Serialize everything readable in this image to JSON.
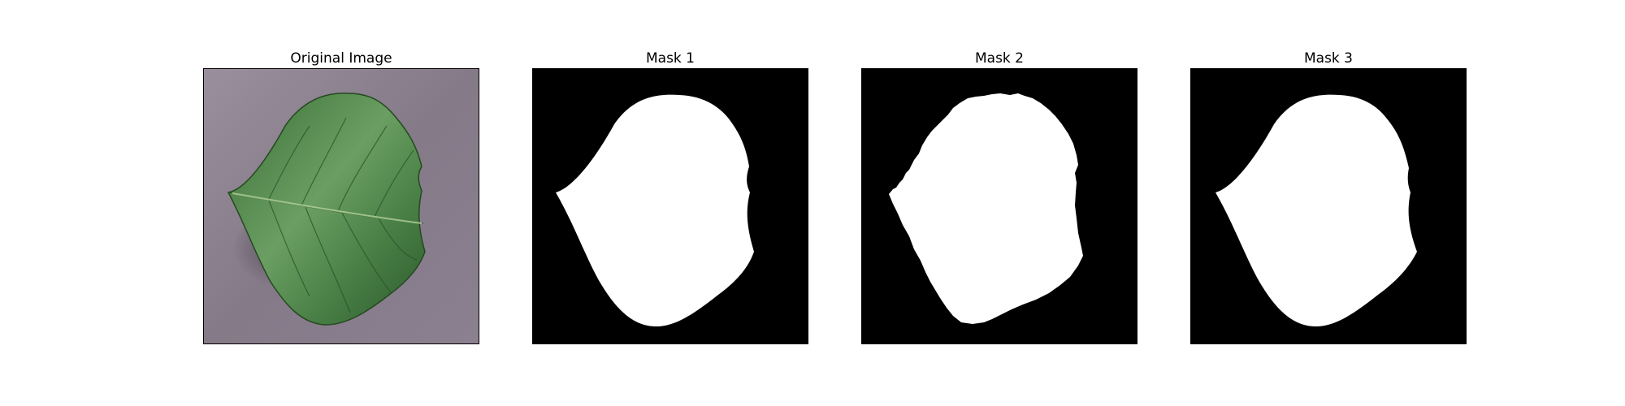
{
  "figure": {
    "panels": [
      {
        "id": "original",
        "title": "Original Image"
      },
      {
        "id": "mask1",
        "title": "Mask 1"
      },
      {
        "id": "mask2",
        "title": "Mask 2"
      },
      {
        "id": "mask3",
        "title": "Mask 3"
      }
    ]
  },
  "colors": {
    "leaf_dark": "#2f5e30",
    "leaf_mid": "#4c8548",
    "leaf_light": "#8ab583",
    "background_surface": "#8c8290",
    "mask_foreground": "#ffffff",
    "mask_background": "#000000"
  }
}
